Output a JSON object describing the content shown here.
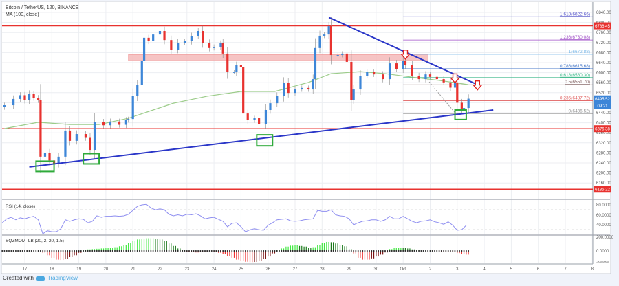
{
  "header": {
    "symbol": "Bitcoin / TetherUS, 120, BINANCE",
    "ma_label": "MA (100, close)"
  },
  "footer": {
    "created_with": "Created with",
    "brand": "TradingView"
  },
  "colors": {
    "up": "#3d86d8",
    "down": "#e8322f",
    "ma": "#9ccc8a",
    "trend": "#2a36c8",
    "hline": "#e8322f",
    "zone": "#f4b6b6",
    "box": "#2eaa3a",
    "rsi": "#8f8ff0",
    "sqz_lime": "#3ee83e",
    "sqz_green": "#1a7a1a",
    "sqz_red": "#f03030",
    "sqz_maroon": "#7a1010"
  },
  "chart_data": {
    "type": "candlestick",
    "title": "Bitcoin / TetherUS, 120, BINANCE",
    "ylim": [
      6120,
      6860
    ],
    "y_ticks": [
      6840,
      6800,
      6760,
      6720,
      6680,
      6640,
      6600,
      6560,
      6520,
      6480,
      6440,
      6400,
      6360,
      6320,
      6280,
      6240,
      6200,
      6160
    ],
    "y_tick_labels": [
      "6840.00",
      "6800.00",
      "6760.00",
      "6720.00",
      "6680.00",
      "6640.00",
      "6600.00",
      "6560.00",
      "6520.00",
      "6480.00",
      "6440.00",
      "6400.00",
      "6360.00",
      "6320.00",
      "6280.00",
      "6240.00",
      "6200.00",
      "6160.00"
    ],
    "x_ticks": [
      "17",
      "18",
      "19",
      "20",
      "21",
      "22",
      "23",
      "24",
      "25",
      "26",
      "27",
      "28",
      "29",
      "30",
      "Oct",
      "2",
      "3",
      "4",
      "5",
      "6",
      "7",
      "8"
    ],
    "grid": true,
    "closes": [
      [
        "09-16 06",
        6470
      ],
      [
        "09-16 14",
        6495
      ],
      [
        "09-16 20",
        6510
      ],
      [
        "09-17 00",
        6490
      ],
      [
        "09-17 04",
        6515
      ],
      [
        "09-17 08",
        6500
      ],
      [
        "09-17 12",
        6490
      ],
      [
        "09-17 14",
        6265
      ],
      [
        "09-17 18",
        6280
      ],
      [
        "09-17 22",
        6250
      ],
      [
        "09-18 02",
        6237
      ],
      [
        "09-18 06",
        6265
      ],
      [
        "09-18 12",
        6369
      ],
      [
        "09-18 16",
        6328
      ],
      [
        "09-18 22",
        6355
      ],
      [
        "09-19 06",
        6340
      ],
      [
        "09-19 10",
        6292
      ],
      [
        "09-19 14",
        6404
      ],
      [
        "09-19 22",
        6390
      ],
      [
        "09-20 04",
        6405
      ],
      [
        "09-20 12",
        6392
      ],
      [
        "09-20 18",
        6410
      ],
      [
        "09-20 20",
        6415
      ],
      [
        "09-21 00",
        6506
      ],
      [
        "09-21 04",
        6552
      ],
      [
        "09-21 08",
        6648
      ],
      [
        "09-21 10",
        6739
      ],
      [
        "09-21 14",
        6725
      ],
      [
        "09-21 18",
        6752
      ],
      [
        "09-22 00",
        6766
      ],
      [
        "09-22 04",
        6730
      ],
      [
        "09-22 10",
        6692
      ],
      [
        "09-22 16",
        6719
      ],
      [
        "09-22 22",
        6725
      ],
      [
        "09-23 04",
        6746
      ],
      [
        "09-23 10",
        6766
      ],
      [
        "09-23 14",
        6719
      ],
      [
        "09-23 20",
        6698
      ],
      [
        "09-24 00",
        6703
      ],
      [
        "09-24 06",
        6717
      ],
      [
        "09-24 08",
        6676
      ],
      [
        "09-24 12",
        6602
      ],
      [
        "09-24 18",
        6602
      ],
      [
        "09-24 20",
        6629
      ],
      [
        "09-25 00",
        6621
      ],
      [
        "09-25 02",
        6437
      ],
      [
        "09-25 06",
        6410
      ],
      [
        "09-25 12",
        6418
      ],
      [
        "09-25 16",
        6396
      ],
      [
        "09-25 22",
        6451
      ],
      [
        "09-26 02",
        6478
      ],
      [
        "09-26 08",
        6506
      ],
      [
        "09-26 14",
        6560
      ],
      [
        "09-26 18",
        6519
      ],
      [
        "09-27 00",
        6533
      ],
      [
        "09-27 06",
        6539
      ],
      [
        "09-27 12",
        6533
      ],
      [
        "09-27 16",
        6574
      ],
      [
        "09-27 18",
        6698
      ],
      [
        "09-27 22",
        6747
      ],
      [
        "09-28 02",
        6752
      ],
      [
        "09-28 06",
        6785
      ],
      [
        "09-28 08",
        6670
      ],
      [
        "09-28 14",
        6670
      ],
      [
        "09-28 18",
        6676
      ],
      [
        "09-28 22",
        6643
      ],
      [
        "09-29 02",
        6492
      ],
      [
        "09-29 04",
        6533
      ],
      [
        "09-29 10",
        6588
      ],
      [
        "09-29 16",
        6602
      ],
      [
        "09-29 22",
        6593
      ],
      [
        "09-30 06",
        6574
      ],
      [
        "09-30 12",
        6637
      ],
      [
        "09-30 18",
        6615
      ],
      [
        "10-01 00",
        6648
      ],
      [
        "10-01 02",
        6629
      ],
      [
        "10-01 08",
        6588
      ],
      [
        "10-01 14",
        6574
      ],
      [
        "10-01 20",
        6593
      ],
      [
        "10-02 00",
        6583
      ],
      [
        "10-02 06",
        6574
      ],
      [
        "10-02 12",
        6561
      ],
      [
        "10-02 18",
        6540
      ],
      [
        "10-02 22",
        6561
      ],
      [
        "10-03 00",
        6480
      ],
      [
        "10-03 04",
        6451
      ],
      [
        "10-03 06",
        6459
      ],
      [
        "10-03 10",
        6496
      ]
    ],
    "ma100": [
      [
        "09-16 06",
        6377
      ],
      [
        "09-17 12",
        6402
      ],
      [
        "09-18 16",
        6393
      ],
      [
        "09-19 18",
        6393
      ],
      [
        "09-20 20",
        6418
      ],
      [
        "09-22 12",
        6478
      ],
      [
        "09-23 18",
        6506
      ],
      [
        "09-25 00",
        6525
      ],
      [
        "09-26 06",
        6525
      ],
      [
        "09-27 12",
        6561
      ],
      [
        "09-28 08",
        6596
      ],
      [
        "09-29 10",
        6604
      ],
      [
        "09-30 08",
        6596
      ],
      [
        "10-01 08",
        6582
      ],
      [
        "10-02 08",
        6569
      ],
      [
        "10-03 10",
        6552
      ]
    ],
    "horizontal_lines": [
      {
        "price": 6786.45,
        "label": "6786.45"
      },
      {
        "price": 6376.38,
        "label": "6376.38"
      },
      {
        "price": 6135.22,
        "label": "6135.22"
      }
    ],
    "last_price": {
      "label": "6495.52",
      "countdown": "09:21",
      "price": 6495.52
    },
    "resistance_zone": {
      "from": "09-20 20",
      "to": "10-01 22",
      "price_low": 6648,
      "price_high": 6672
    },
    "fib_levels": [
      {
        "label": "1.618(6822.66)",
        "price": 6822.66,
        "color": "#5050c8"
      },
      {
        "label": "1.236(6730.08)",
        "price": 6730.08,
        "color": "#a050c8"
      },
      {
        "label": "1(6672.88)",
        "price": 6672.88,
        "color": "#7ab8e8"
      },
      {
        "label": "0.786(6615.68)",
        "price": 6615.68,
        "color": "#4a7ac8"
      },
      {
        "label": "0.618(6580.30)",
        "price": 6580.3,
        "color": "#3cb88a"
      },
      {
        "label": "0.5(6551.70)",
        "price": 6551.7,
        "color": "#806060"
      },
      {
        "label": "0.236(6487.72)",
        "price": 6487.72,
        "color": "#e06060"
      },
      {
        "label": "0(6436.52)",
        "price": 6436.52,
        "color": "#909090"
      }
    ],
    "fib_from": "10-01 00",
    "trendlines": [
      {
        "from": [
          "09-28 06",
          6820
        ],
        "to": [
          "10-03 18",
          6552
        ]
      },
      {
        "from": [
          "09-17 04",
          6224
        ],
        "to": [
          "10-04 08",
          6451
        ]
      }
    ],
    "support_boxes": [
      {
        "from": "09-17 10",
        "to": "09-18 02",
        "high": 6247,
        "low": 6206
      },
      {
        "from": "09-19 04",
        "to": "09-19 18",
        "high": 6277,
        "low": 6236
      },
      {
        "from": "09-25 14",
        "to": "09-26 04",
        "high": 6352,
        "low": 6308
      },
      {
        "from": "10-02 22",
        "to": "10-03 08",
        "high": 6451,
        "low": 6413
      }
    ],
    "arrows": [
      [
        "10-01 02",
        6690
      ],
      [
        "10-02 22",
        6595
      ],
      [
        "10-03 18",
        6567
      ]
    ],
    "rsi": {
      "label": "RSI (14, close)",
      "y_ticks": [
        "80.0000",
        "60.0000",
        "40.0000"
      ],
      "bands": [
        70,
        30
      ],
      "values": [
        44,
        52,
        55,
        50,
        54,
        52,
        55,
        57,
        50,
        22,
        28,
        26,
        26,
        32,
        50,
        47,
        50,
        52,
        51,
        44,
        47,
        58,
        55,
        57,
        57,
        58,
        57,
        58,
        61,
        69,
        77,
        80,
        81,
        74,
        70,
        72,
        70,
        61,
        58,
        60,
        58,
        61,
        60,
        62,
        58,
        52,
        54,
        55,
        51,
        47,
        36,
        43,
        44,
        36,
        26,
        30,
        32,
        30,
        29,
        39,
        44,
        50,
        51,
        52,
        48,
        47,
        48,
        50,
        51,
        52,
        69,
        67,
        67,
        70,
        60,
        58,
        57,
        52,
        40,
        44,
        47,
        48,
        50,
        50,
        47,
        50,
        57,
        52,
        52,
        57,
        52,
        47,
        44,
        47,
        48,
        50,
        46,
        44,
        41,
        46,
        39,
        29,
        30,
        39
      ]
    },
    "sqzmom": {
      "label": "SQZMOM_LB (20, 2, 20, 1.5)",
      "y_ticks": [
        "200.0000",
        "0.0000",
        "-200.0000"
      ],
      "values": [
        0,
        0,
        0,
        0,
        0,
        0,
        0,
        0,
        0,
        -30,
        -70,
        -110,
        -140,
        -145,
        -130,
        -100,
        -70,
        -30,
        15,
        25,
        30,
        35,
        40,
        45,
        50,
        60,
        75,
        100,
        130,
        160,
        185,
        200,
        205,
        205,
        200,
        185,
        160,
        120,
        80,
        40,
        10,
        -15,
        -20,
        -25,
        -20,
        -10,
        -5,
        -20,
        -30,
        -50,
        -80,
        -110,
        -140,
        -160,
        -175,
        -180,
        -178,
        -160,
        -130,
        -90,
        -40,
        10,
        40,
        70,
        85,
        90,
        80,
        70,
        55,
        60,
        100,
        130,
        145,
        140,
        120,
        100,
        75,
        30,
        -40,
        -110,
        -140,
        -140,
        -120,
        -90,
        -60,
        -25,
        30,
        50,
        55,
        50,
        40,
        25,
        10,
        5,
        0,
        -5,
        -5,
        -10,
        -10,
        -10,
        -20,
        -35,
        -50,
        -60
      ]
    }
  }
}
